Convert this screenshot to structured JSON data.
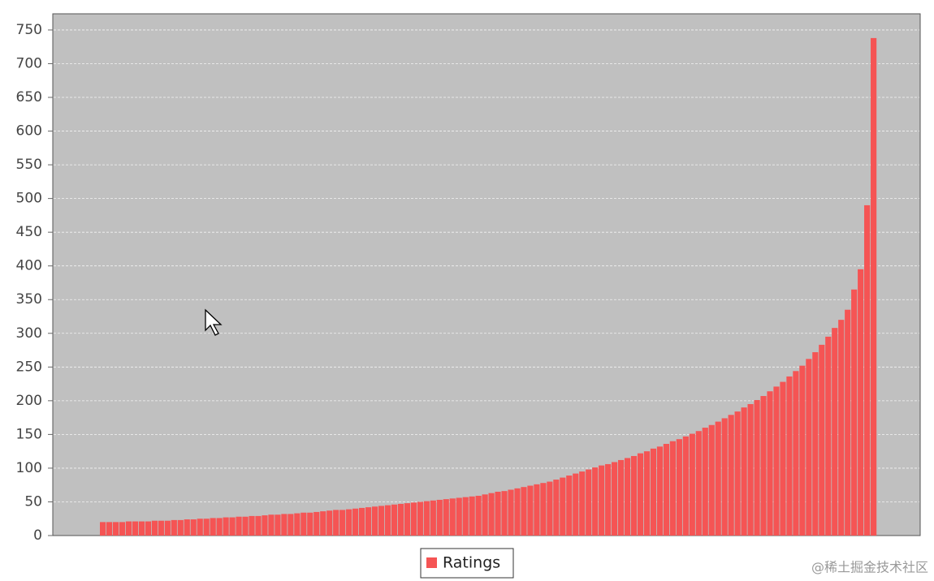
{
  "chart_data": {
    "type": "bar",
    "series": [
      {
        "name": "Ratings",
        "color": "#f55454",
        "values": [
          20,
          20,
          20,
          20,
          21,
          21,
          21,
          21,
          22,
          22,
          22,
          23,
          23,
          24,
          24,
          25,
          25,
          26,
          26,
          27,
          27,
          28,
          28,
          29,
          29,
          30,
          31,
          31,
          32,
          32,
          33,
          34,
          34,
          35,
          36,
          37,
          38,
          38,
          39,
          40,
          41,
          42,
          43,
          44,
          45,
          46,
          47,
          48,
          49,
          50,
          51,
          52,
          53,
          54,
          55,
          56,
          57,
          58,
          59,
          61,
          63,
          65,
          66,
          68,
          70,
          72,
          74,
          76,
          78,
          80,
          83,
          86,
          89,
          92,
          95,
          98,
          101,
          104,
          106,
          109,
          112,
          115,
          118,
          122,
          125,
          129,
          132,
          136,
          140,
          143,
          147,
          151,
          155,
          160,
          164,
          169,
          174,
          179,
          184,
          190,
          195,
          201,
          207,
          214,
          221,
          228,
          236,
          244,
          252,
          262,
          272,
          283,
          295,
          308,
          320,
          335,
          365,
          395,
          490,
          738
        ]
      }
    ],
    "ylim": [
      0,
      774
    ],
    "yticks": [
      0,
      50,
      100,
      150,
      200,
      250,
      300,
      350,
      400,
      450,
      500,
      550,
      600,
      650,
      700,
      750
    ],
    "grid": true,
    "legend": "bottom"
  },
  "watermark": "@稀土掘金技术社区"
}
